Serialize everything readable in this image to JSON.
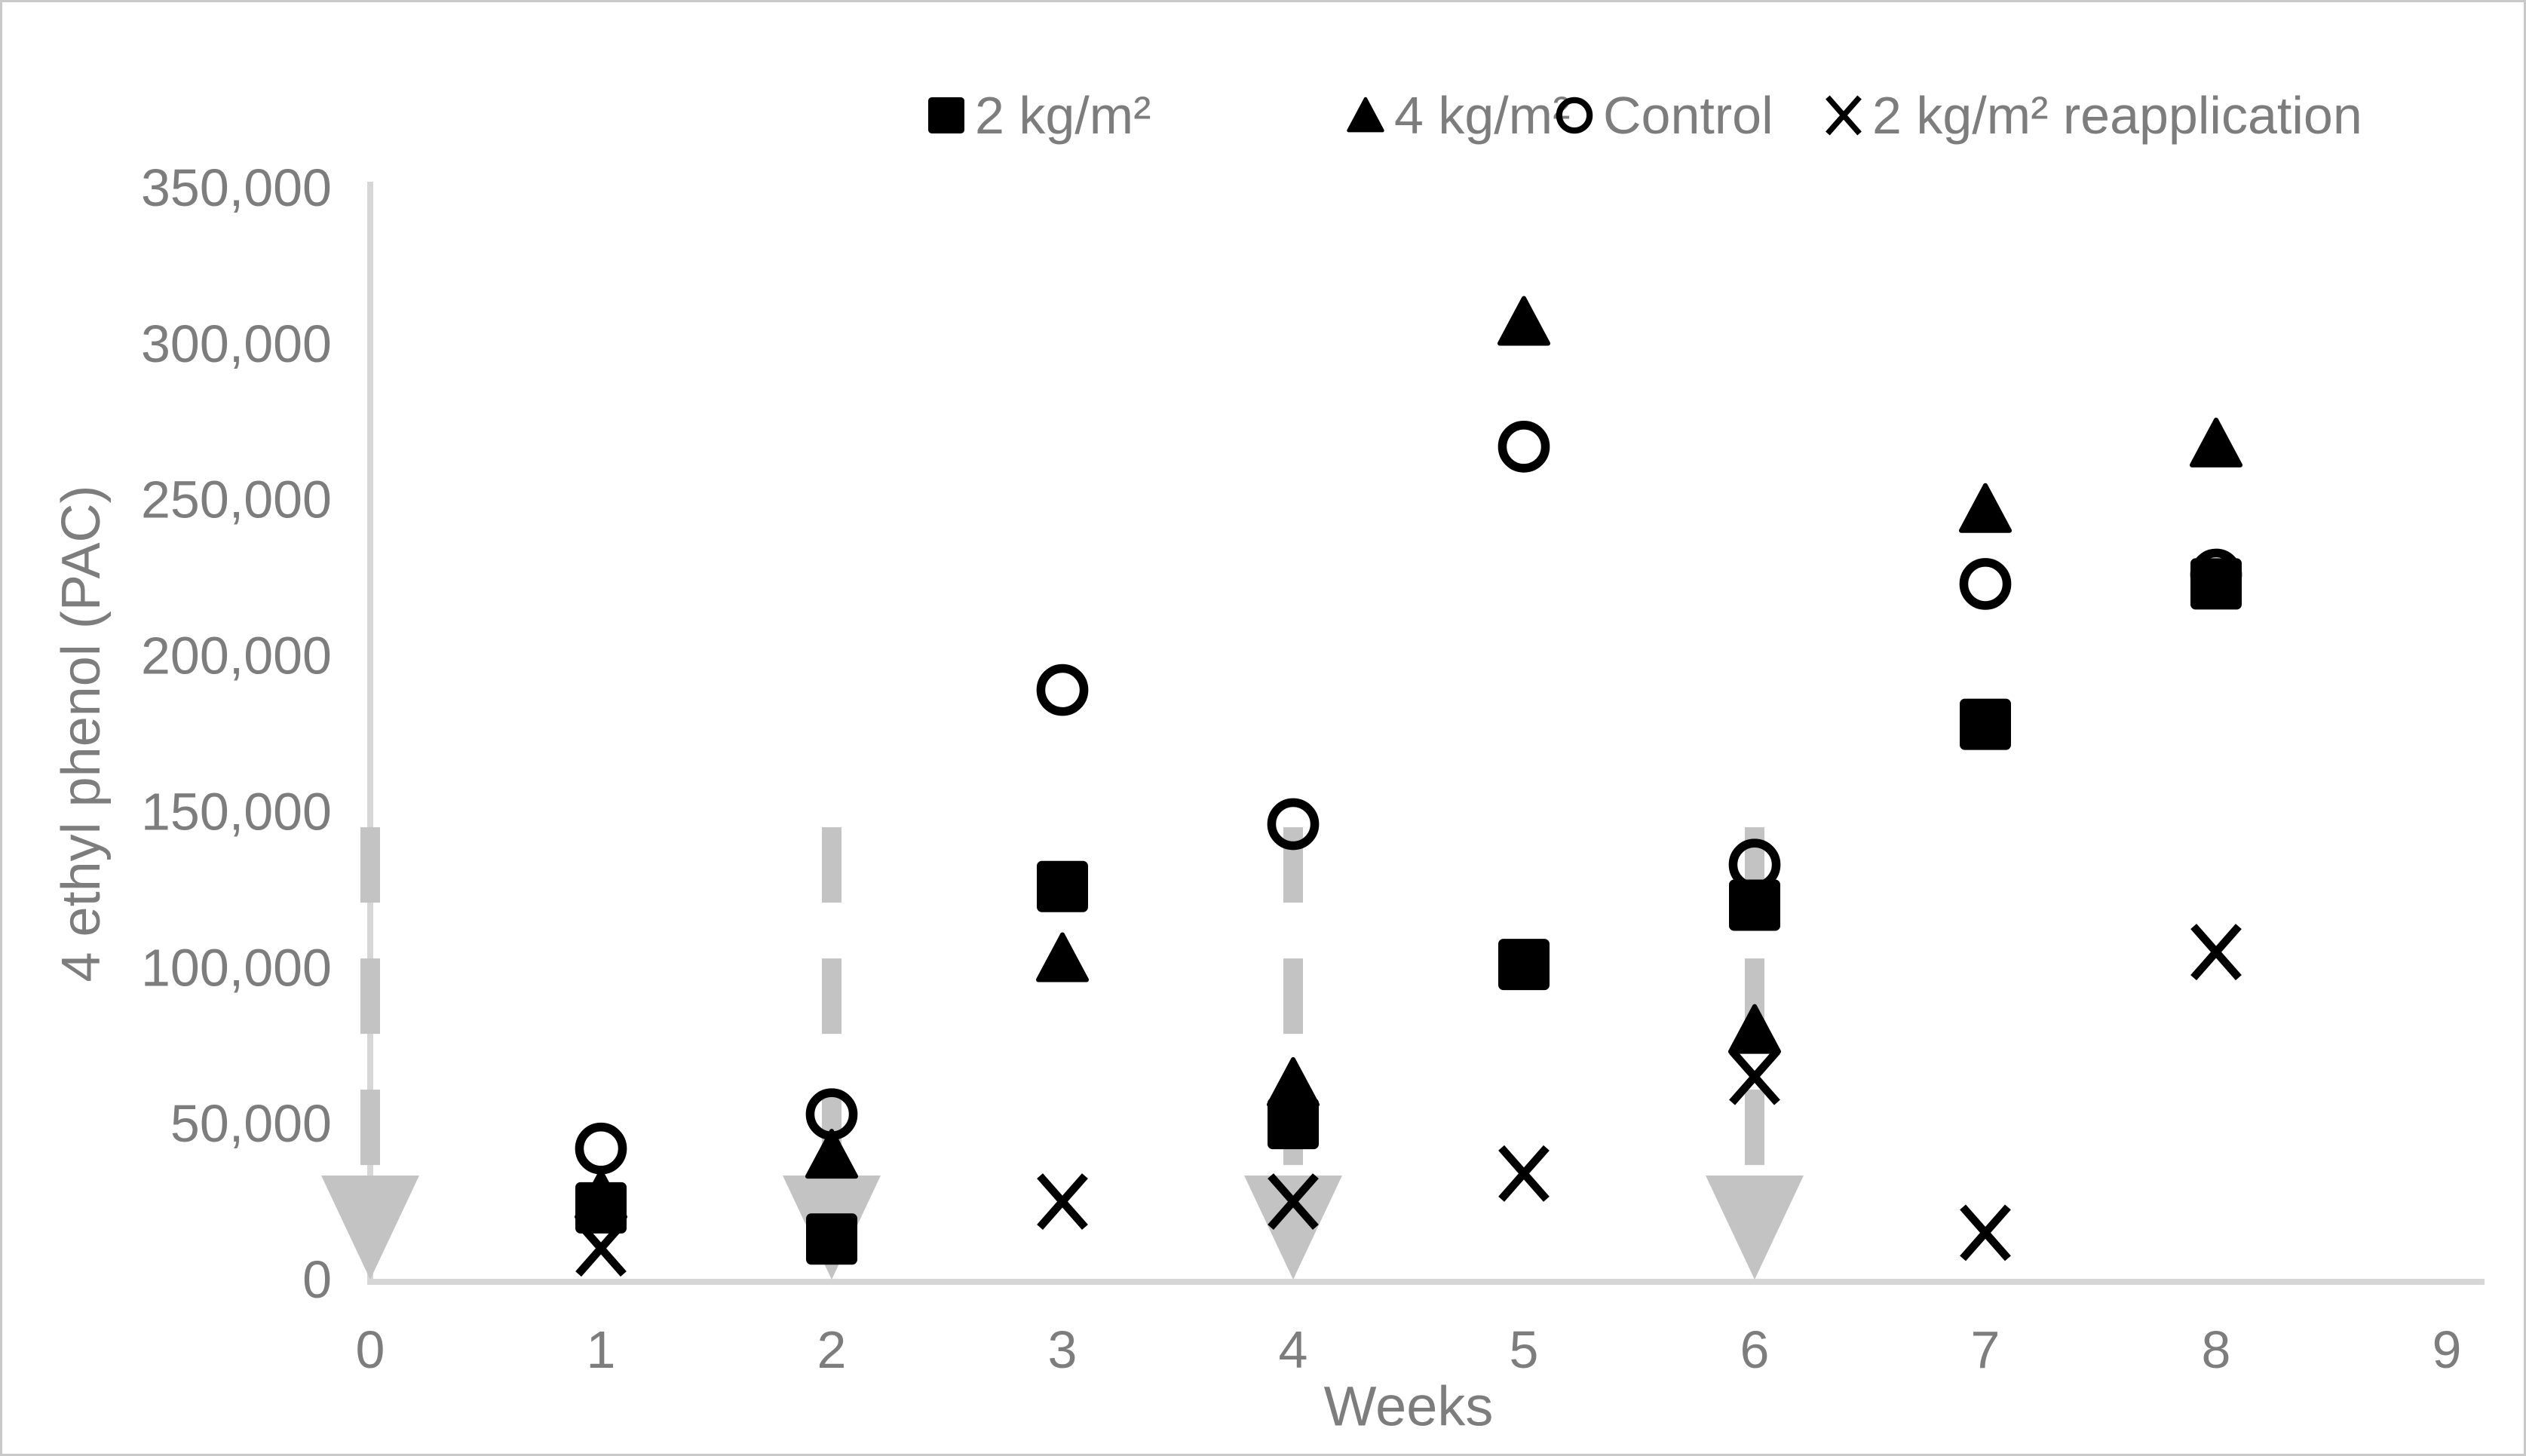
{
  "figure": {
    "kind": "scatter chart",
    "background": "#ffffff",
    "frame_color": "#c9c9c9"
  },
  "chart_data": {
    "type": "scatter",
    "title": "",
    "xlabel": "Weeks",
    "ylabel": "4 ethyl phenol (PAC)",
    "xlim": [
      0,
      9.4
    ],
    "ylim": [
      0,
      350000
    ],
    "x_ticks": [
      0,
      1,
      2,
      3,
      4,
      5,
      6,
      7,
      8,
      9
    ],
    "y_ticks": [
      0,
      50000,
      100000,
      150000,
      200000,
      250000,
      300000,
      350000
    ],
    "y_tick_format": "comma",
    "grid": false,
    "legend_position": "top-center",
    "marker_color": "#000000",
    "axis_color": "#d6d6d6",
    "text_color": "#7d7d7d",
    "arrow_color": "#c3c3c3",
    "series": [
      {
        "name": "2 kg/m²",
        "marker": "filled-square",
        "points": [
          [
            1,
            23000
          ],
          [
            2,
            13000
          ],
          [
            3,
            126000
          ],
          [
            4,
            50000
          ],
          [
            5,
            101000
          ],
          [
            6,
            120000
          ],
          [
            7,
            178000
          ],
          [
            8,
            223000
          ]
        ]
      },
      {
        "name": "4 kg/m²",
        "marker": "filled-triangle",
        "points": [
          [
            1,
            27000
          ],
          [
            2,
            40000
          ],
          [
            3,
            103000
          ],
          [
            4,
            63000
          ],
          [
            5,
            307000
          ],
          [
            6,
            80000
          ],
          [
            7,
            247000
          ],
          [
            8,
            268000
          ]
        ]
      },
      {
        "name": "Control",
        "marker": "open-circle",
        "points": [
          [
            1,
            42000
          ],
          [
            2,
            53000
          ],
          [
            3,
            189000
          ],
          [
            4,
            146000
          ],
          [
            5,
            267000
          ],
          [
            6,
            133000
          ],
          [
            7,
            223000
          ],
          [
            8,
            226000
          ]
        ]
      },
      {
        "name": "2 kg/m² reapplication",
        "marker": "x-cross",
        "points": [
          [
            1,
            10000
          ],
          [
            3,
            25000
          ],
          [
            4,
            25000
          ],
          [
            5,
            34000
          ],
          [
            6,
            65000
          ],
          [
            7,
            15000
          ],
          [
            8,
            105000
          ]
        ]
      }
    ],
    "annotations": {
      "application_arrows": {
        "style": "gray dashed vertical arrow pointing down to axis",
        "weeks": [
          0,
          2,
          4,
          6
        ],
        "from_value": 145000,
        "to_value": 0
      }
    }
  }
}
